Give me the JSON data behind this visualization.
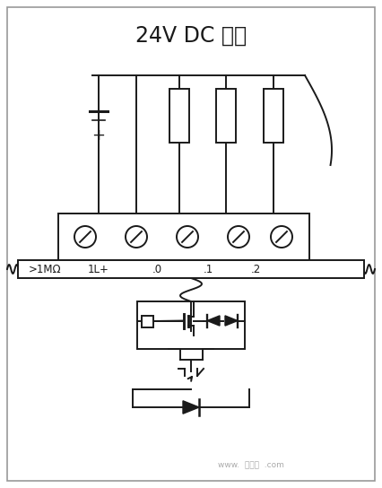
{
  "title": "24V DC 输出",
  "title_fontsize": 17,
  "bg_color": "#ffffff",
  "line_color": "#1a1a1a",
  "terminal_labels": [
    ">1MΩ",
    "1L+",
    ".0",
    ".1",
    ".2"
  ],
  "figsize": [
    4.26,
    5.44
  ],
  "dpi": 100,
  "watermark": "www.  插线图  .com"
}
